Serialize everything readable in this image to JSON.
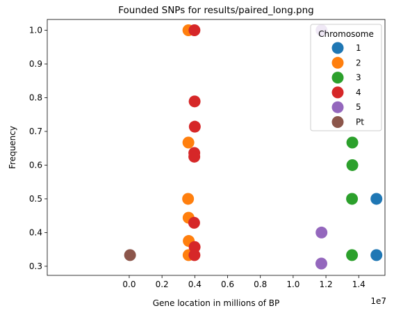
{
  "chart_data": {
    "type": "scatter",
    "title": "Founded SNPs for results/paired_long.png",
    "xlabel": "Gene location in millions of BP",
    "ylabel": "Frequency",
    "x_offset_label": "1e7",
    "xlim": [
      -5000000,
      15600000
    ],
    "ylim": [
      0.273,
      1.032
    ],
    "xticks": [
      0,
      2000000,
      4000000,
      6000000,
      8000000,
      10000000,
      12000000,
      14000000
    ],
    "xtick_labels": [
      "0.0",
      "0.2",
      "0.4",
      "0.6",
      "0.8",
      "1.0",
      "1.2",
      "1.4"
    ],
    "yticks": [
      0.3,
      0.4,
      0.5,
      0.6,
      0.7,
      0.8,
      0.9,
      1.0
    ],
    "ytick_labels": [
      "0.3",
      "0.4",
      "0.5",
      "0.6",
      "0.7",
      "0.8",
      "0.9",
      "1.0"
    ],
    "legend": {
      "title": "Chromosome",
      "placement": "top-right"
    },
    "grid": false,
    "series": [
      {
        "name": "1",
        "color": "#1f77b4",
        "points": [
          [
            15080000,
            0.5
          ],
          [
            15080000,
            0.333
          ]
        ]
      },
      {
        "name": "2",
        "color": "#ff7f0e",
        "points": [
          [
            3610000,
            1.0
          ],
          [
            3610000,
            0.667
          ],
          [
            3590000,
            0.5
          ],
          [
            3620000,
            0.444
          ],
          [
            3630000,
            0.375
          ],
          [
            3620000,
            0.333
          ]
        ]
      },
      {
        "name": "3",
        "color": "#2ca02c",
        "points": [
          [
            13610000,
            0.667
          ],
          [
            13610000,
            0.6
          ],
          [
            13590000,
            0.5
          ],
          [
            13590000,
            0.333
          ]
        ]
      },
      {
        "name": "4",
        "color": "#d62728",
        "points": [
          [
            3980000,
            1.0
          ],
          [
            3990000,
            0.789
          ],
          [
            4000000,
            0.714
          ],
          [
            3970000,
            0.636
          ],
          [
            3970000,
            0.625
          ],
          [
            3960000,
            0.429
          ],
          [
            3990000,
            0.357
          ],
          [
            3980000,
            0.333
          ]
        ]
      },
      {
        "name": "5",
        "color": "#9467bd",
        "points": [
          [
            11730000,
            1.0
          ],
          [
            11730000,
            0.4
          ],
          [
            11720000,
            0.308
          ]
        ]
      },
      {
        "name": "Pt",
        "color": "#8c564b",
        "points": [
          [
            50000,
            0.333
          ]
        ]
      }
    ]
  }
}
